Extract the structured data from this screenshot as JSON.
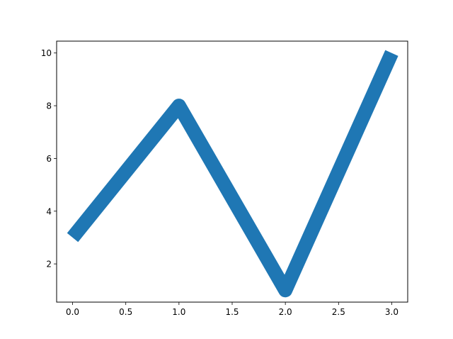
{
  "chart_data": {
    "type": "line",
    "title": "",
    "xlabel": "",
    "ylabel": "",
    "x": [
      0,
      1,
      2,
      3
    ],
    "series": [
      {
        "values": [
          3,
          8,
          1,
          10
        ],
        "color": "#1f77b4"
      }
    ],
    "xlim": [
      -0.15,
      3.15
    ],
    "ylim": [
      0.55,
      10.45
    ],
    "xticks": [
      "0.0",
      "0.5",
      "1.0",
      "1.5",
      "2.0",
      "2.5",
      "3.0"
    ],
    "yticks": [
      "2",
      "4",
      "6",
      "8",
      "10"
    ],
    "grid": false,
    "legend": "none"
  }
}
